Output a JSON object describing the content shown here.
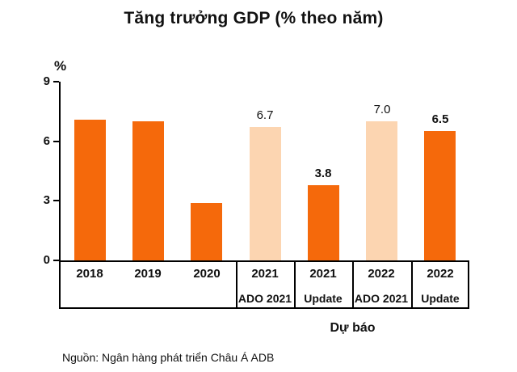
{
  "chart_data": {
    "type": "bar",
    "title": "Tăng trưởng GDP (% theo năm)",
    "ylabel": "%",
    "ylim": [
      0,
      9
    ],
    "yticks": [
      0,
      3,
      6,
      9
    ],
    "grid": false,
    "legend": "none",
    "colors": {
      "solid": "#F5690B",
      "light": "#FCD5B1"
    },
    "bars": [
      {
        "year": "2018",
        "sublabel": "",
        "value": 7.1,
        "style": "solid",
        "data_label": "",
        "label_bold": false
      },
      {
        "year": "2019",
        "sublabel": "",
        "value": 7.0,
        "style": "solid",
        "data_label": "",
        "label_bold": false
      },
      {
        "year": "2020",
        "sublabel": "",
        "value": 2.9,
        "style": "solid",
        "data_label": "",
        "label_bold": false
      },
      {
        "year": "2021",
        "sublabel": "ADO 2021",
        "value": 6.7,
        "style": "light",
        "data_label": "6.7",
        "label_bold": false
      },
      {
        "year": "2021",
        "sublabel": "Update",
        "value": 3.8,
        "style": "solid",
        "data_label": "3.8",
        "label_bold": true
      },
      {
        "year": "2022",
        "sublabel": "ADO 2021",
        "value": 7.0,
        "style": "light",
        "data_label": "7.0",
        "label_bold": false
      },
      {
        "year": "2022",
        "sublabel": "Update",
        "value": 6.5,
        "style": "solid",
        "data_label": "6.5",
        "label_bold": true
      }
    ],
    "forecast_label": "Dự báo",
    "source": "Nguồn: Ngân hàng phát triển Châu Á ADB"
  }
}
